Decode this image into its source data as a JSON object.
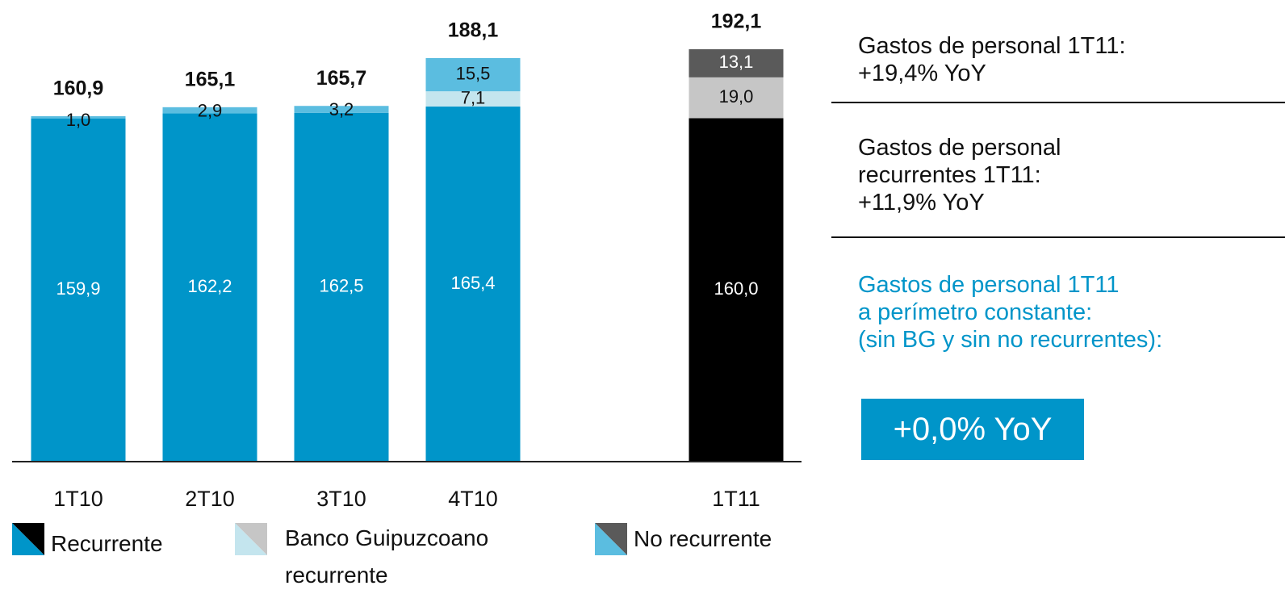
{
  "chart_data": {
    "type": "stacked_bar",
    "categories": [
      "1T10",
      "2T10",
      "3T10",
      "4T10",
      null,
      "1T11"
    ],
    "series": [
      {
        "name": "Recurrente",
        "colors": [
          "#0095c9",
          "#0095c9",
          "#0095c9",
          "#0095c9",
          null,
          "#000000"
        ],
        "values": [
          159.9,
          162.2,
          162.5,
          165.4,
          null,
          160.0
        ],
        "value_labels": [
          "159,9",
          "162,2",
          "162,5",
          "165,4",
          null,
          "160,0"
        ]
      },
      {
        "name": "Banco Guipuzcoano recurrente",
        "colors": [
          null,
          null,
          null,
          "#c4e5ee",
          null,
          "#c6c6c6"
        ],
        "values": [
          null,
          null,
          null,
          7.1,
          null,
          19.0
        ],
        "value_labels": [
          null,
          null,
          null,
          "7,1",
          null,
          "19,0"
        ]
      },
      {
        "name": "No recurrente",
        "colors": [
          "#5bbde0",
          "#5bbde0",
          "#5bbde0",
          "#5bbde0",
          null,
          "#5a5a5a"
        ],
        "values": [
          1.0,
          2.9,
          3.2,
          15.5,
          null,
          13.1
        ],
        "value_labels": [
          "1,0",
          "2,9",
          "3,2",
          "15,5",
          null,
          "13,1"
        ]
      }
    ],
    "totals": [
      160.9,
      165.1,
      165.7,
      188.1,
      null,
      192.1
    ],
    "total_labels": [
      "160,9",
      "165,1",
      "165,7",
      "188,1",
      null,
      "192,1"
    ]
  },
  "sidebar": {
    "notes": [
      {
        "lines": [
          "Gastos de personal 1T11:",
          "+19,4% YoY"
        ]
      },
      {
        "lines": [
          "Gastos de personal",
          "recurrentes 1T11:",
          "+11,9% YoY"
        ]
      },
      {
        "lines": [
          "Gastos de personal 1T11",
          "a perímetro constante:",
          "(sin BG y sin no recurrentes):"
        ]
      }
    ],
    "highlight": "+0,0% YoY"
  }
}
